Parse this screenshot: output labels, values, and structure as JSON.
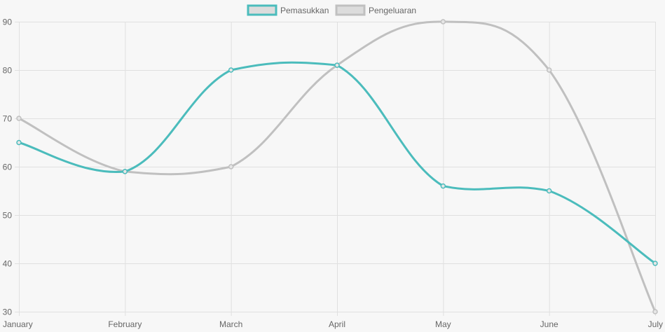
{
  "chart_data": {
    "type": "line",
    "categories": [
      "January",
      "February",
      "March",
      "April",
      "May",
      "June",
      "July"
    ],
    "series": [
      {
        "name": "Pemasukkan",
        "values": [
          65,
          59,
          80,
          81,
          56,
          55,
          40
        ],
        "color": "#4bbcbc"
      },
      {
        "name": "Pengeluaran",
        "values": [
          70,
          59,
          60,
          81,
          90,
          80,
          30
        ],
        "color": "#c0c0c0"
      }
    ],
    "ylim": [
      30,
      90
    ],
    "yticks": [
      30,
      40,
      50,
      60,
      70,
      80,
      90
    ],
    "grid": true,
    "legend": "top-center",
    "title": "",
    "xlabel": "",
    "ylabel": ""
  }
}
